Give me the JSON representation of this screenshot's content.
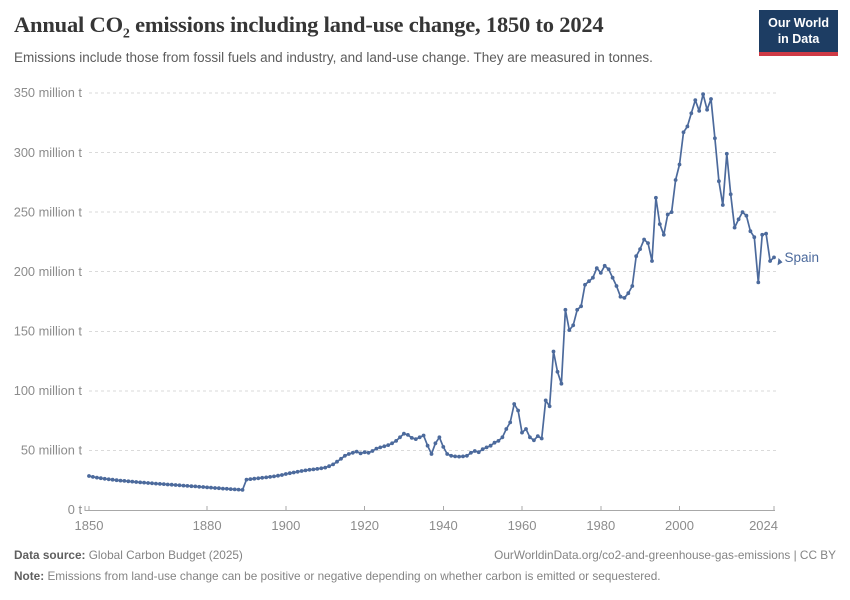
{
  "header": {
    "title_pre": "Annual CO",
    "title_sub": "2",
    "title_post": " emissions including land-use change, 1850 to 2024",
    "subtitle": "Emissions include those from fossil fuels and industry, and land-use change. They are measured in tonnes.",
    "logo": {
      "line1": "Our World",
      "line2": "in Data"
    }
  },
  "footer": {
    "source_label": "Data source:",
    "source_value": "Global Carbon Budget (2025)",
    "attribution": "OurWorldinData.org/co2-and-greenhouse-gas-emissions | CC BY",
    "note_label": "Note:",
    "note_text": "Emissions from land-use change can be positive or negative depending on whether carbon is emitted or sequestered."
  },
  "colors": {
    "series_line": "#4c6a9c",
    "logo_background": "#1d3d63",
    "logo_underline": "#cf3a45",
    "axis_text": "#8c8c8c",
    "gridline": "#dadada",
    "axis_line": "#a8a8a8"
  },
  "chart_data": {
    "type": "line",
    "title": "Annual CO₂ emissions including land-use change, 1850 to 2024",
    "unit": "tonnes",
    "entity": "Spain",
    "xlim": [
      1850,
      2024
    ],
    "ylim": [
      0,
      350
    ],
    "x_ticks": [
      1850,
      1880,
      1900,
      1920,
      1940,
      1960,
      1980,
      2000,
      2024
    ],
    "y_ticks": [
      0,
      50,
      100,
      150,
      200,
      250,
      300,
      350
    ],
    "y_tick_labels": [
      "0 t",
      "50 million t",
      "100 million t",
      "150 million t",
      "200 million t",
      "250 million t",
      "300 million t",
      "350 million t"
    ],
    "grid": "horizontal-dashed",
    "legend": "end-of-line-label",
    "series": [
      {
        "name": "Spain",
        "color": "#4c6a9c",
        "x": [
          1850,
          1851,
          1852,
          1853,
          1854,
          1855,
          1856,
          1857,
          1858,
          1859,
          1860,
          1861,
          1862,
          1863,
          1864,
          1865,
          1866,
          1867,
          1868,
          1869,
          1870,
          1871,
          1872,
          1873,
          1874,
          1875,
          1876,
          1877,
          1878,
          1879,
          1880,
          1881,
          1882,
          1883,
          1884,
          1885,
          1886,
          1887,
          1888,
          1889,
          1890,
          1891,
          1892,
          1893,
          1894,
          1895,
          1896,
          1897,
          1898,
          1899,
          1900,
          1901,
          1902,
          1903,
          1904,
          1905,
          1906,
          1907,
          1908,
          1909,
          1910,
          1911,
          1912,
          1913,
          1914,
          1915,
          1916,
          1917,
          1918,
          1919,
          1920,
          1921,
          1922,
          1923,
          1924,
          1925,
          1926,
          1927,
          1928,
          1929,
          1930,
          1931,
          1932,
          1933,
          1934,
          1935,
          1936,
          1937,
          1938,
          1939,
          1940,
          1941,
          1942,
          1943,
          1944,
          1945,
          1946,
          1947,
          1948,
          1949,
          1950,
          1951,
          1952,
          1953,
          1954,
          1955,
          1956,
          1957,
          1958,
          1959,
          1960,
          1961,
          1962,
          1963,
          1964,
          1965,
          1966,
          1967,
          1968,
          1969,
          1970,
          1971,
          1972,
          1973,
          1974,
          1975,
          1976,
          1977,
          1978,
          1979,
          1980,
          1981,
          1982,
          1983,
          1984,
          1985,
          1986,
          1987,
          1988,
          1989,
          1990,
          1991,
          1992,
          1993,
          1994,
          1995,
          1996,
          1997,
          1998,
          1999,
          2000,
          2001,
          2002,
          2003,
          2004,
          2005,
          2006,
          2007,
          2008,
          2009,
          2010,
          2011,
          2012,
          2013,
          2014,
          2015,
          2016,
          2017,
          2018,
          2019,
          2020,
          2021,
          2022,
          2023,
          2024
        ],
        "values": [
          28.5,
          27.8,
          27.2,
          26.7,
          26.2,
          25.8,
          25.4,
          25,
          24.7,
          24.4,
          24.1,
          23.8,
          23.5,
          23.2,
          23,
          22.7,
          22.4,
          22.2,
          21.9,
          21.7,
          21.4,
          21.2,
          21,
          20.7,
          20.5,
          20.2,
          20,
          19.8,
          19.5,
          19.3,
          19,
          18.8,
          18.5,
          18.3,
          18,
          17.8,
          17.5,
          17.3,
          17.1,
          16.9,
          25.5,
          25.9,
          26.3,
          26.6,
          27,
          27.4,
          27.8,
          28.2,
          28.8,
          29.4,
          30.2,
          30.9,
          31.5,
          32.1,
          32.7,
          33.2,
          33.7,
          34.1,
          34.5,
          35,
          35.6,
          36.8,
          38.3,
          40.5,
          43,
          45.5,
          47,
          48,
          49,
          47.5,
          48.5,
          48,
          49.5,
          51.5,
          52.5,
          53.5,
          54.5,
          56,
          58,
          61,
          64,
          63,
          60.5,
          59.5,
          61,
          62.5,
          54,
          47,
          56,
          61,
          53,
          47,
          45.5,
          45,
          44.8,
          45,
          45.5,
          48,
          49.5,
          48.5,
          51,
          52.5,
          54,
          56.5,
          58,
          61,
          68,
          73.5,
          89,
          83.5,
          65,
          68,
          61,
          58.5,
          62,
          60,
          92,
          87,
          133,
          116,
          106,
          168,
          151,
          155,
          168,
          171,
          189,
          192,
          195,
          203,
          199,
          205,
          202,
          195,
          188,
          179,
          178,
          182,
          188,
          213,
          219,
          227,
          224,
          209,
          262,
          240,
          231,
          248,
          250,
          277,
          290,
          317,
          322,
          333,
          344,
          335,
          349,
          336,
          345,
          312,
          276,
          256,
          299,
          265,
          237,
          244,
          250,
          247,
          234,
          229,
          191,
          231,
          232,
          209,
          212
        ]
      }
    ]
  }
}
